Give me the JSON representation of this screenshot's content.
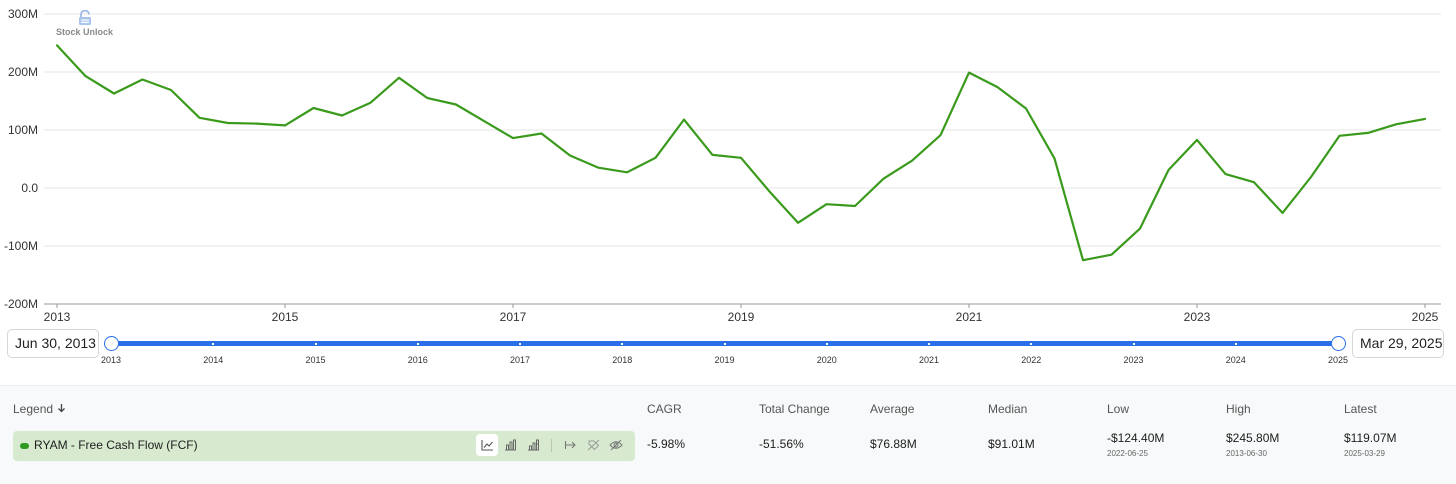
{
  "watermark": {
    "text": "Stock Unlock"
  },
  "chart_data": {
    "type": "line",
    "title": "",
    "xlabel": "",
    "ylabel": "",
    "y_ticks": [
      "300M",
      "200M",
      "100M",
      "0.0",
      "-100M",
      "-200M"
    ],
    "y_tick_values": [
      300,
      200,
      100,
      0,
      -100,
      -200
    ],
    "ylim": [
      -200,
      300
    ],
    "y_unit": "M",
    "x_ticks": [
      "2013",
      "2015",
      "2017",
      "2019",
      "2021",
      "2023",
      "2025"
    ],
    "x_tick_values": [
      2013.0,
      2015.0,
      2017.0,
      2019.0,
      2021.0,
      2023.0,
      2025.0
    ],
    "xlim": [
      2013.0,
      2026.3
    ],
    "grid": true,
    "color": "#3a9a1c",
    "series": [
      {
        "name": "RYAM - Free Cash Flow (FCF)",
        "x": [
          2013.0,
          2013.25,
          2013.5,
          2013.75,
          2014.0,
          2014.25,
          2014.5,
          2014.75,
          2015.0,
          2015.25,
          2015.5,
          2015.75,
          2016.0,
          2016.25,
          2016.5,
          2016.75,
          2017.0,
          2017.25,
          2017.5,
          2017.75,
          2018.0,
          2018.25,
          2018.5,
          2018.75,
          2019.0,
          2019.25,
          2019.5,
          2019.75,
          2020.0,
          2020.25,
          2020.5,
          2020.75,
          2021.0,
          2021.25,
          2021.5,
          2021.75,
          2022.0,
          2022.25,
          2022.5,
          2022.75,
          2023.0,
          2023.25,
          2023.5,
          2023.75,
          2024.0,
          2024.25,
          2024.5,
          2024.75,
          2025.0
        ],
        "values": [
          245.8,
          193,
          163,
          187,
          169,
          121,
          112,
          111,
          108,
          138,
          125,
          147,
          190,
          155,
          144,
          115,
          86,
          94,
          56,
          35,
          27,
          52,
          118,
          57,
          52,
          -6,
          -60,
          -28,
          -31,
          16,
          47,
          91,
          199,
          174,
          137,
          51,
          -124.4,
          -115,
          -70,
          31,
          83,
          24,
          10,
          -43,
          19,
          90,
          95,
          110,
          119.07
        ]
      }
    ]
  },
  "range": {
    "start": "Jun 30, 2013",
    "end": "Mar 29, 2025",
    "years": [
      "2013",
      "2014",
      "2015",
      "2016",
      "2017",
      "2018",
      "2019",
      "2020",
      "2021",
      "2022",
      "2023",
      "2024",
      "2025"
    ]
  },
  "table": {
    "headers": {
      "legend": "Legend",
      "legend_sort_icon": "arrow-down-icon",
      "cagr": "CAGR",
      "total_change": "Total Change",
      "average": "Average",
      "median": "Median",
      "low": "Low",
      "high": "High",
      "latest": "Latest"
    },
    "row": {
      "label": "RYAM - Free Cash Flow (FCF)",
      "swatch_color": "#2e9a1f",
      "icons": [
        "line-chart-icon",
        "bar-chart-icon",
        "stacked-bar-icon",
        "arrow-right-bar-icon",
        "tag-off-icon",
        "eye-off-icon"
      ],
      "cagr": "-5.98%",
      "total_change": "-51.56%",
      "average": "$76.88M",
      "median": "$91.01M",
      "low": "-$124.40M",
      "low_date": "2022-06-25",
      "high": "$245.80M",
      "high_date": "2013-06-30",
      "latest": "$119.07M",
      "latest_date": "2025-03-29"
    }
  }
}
